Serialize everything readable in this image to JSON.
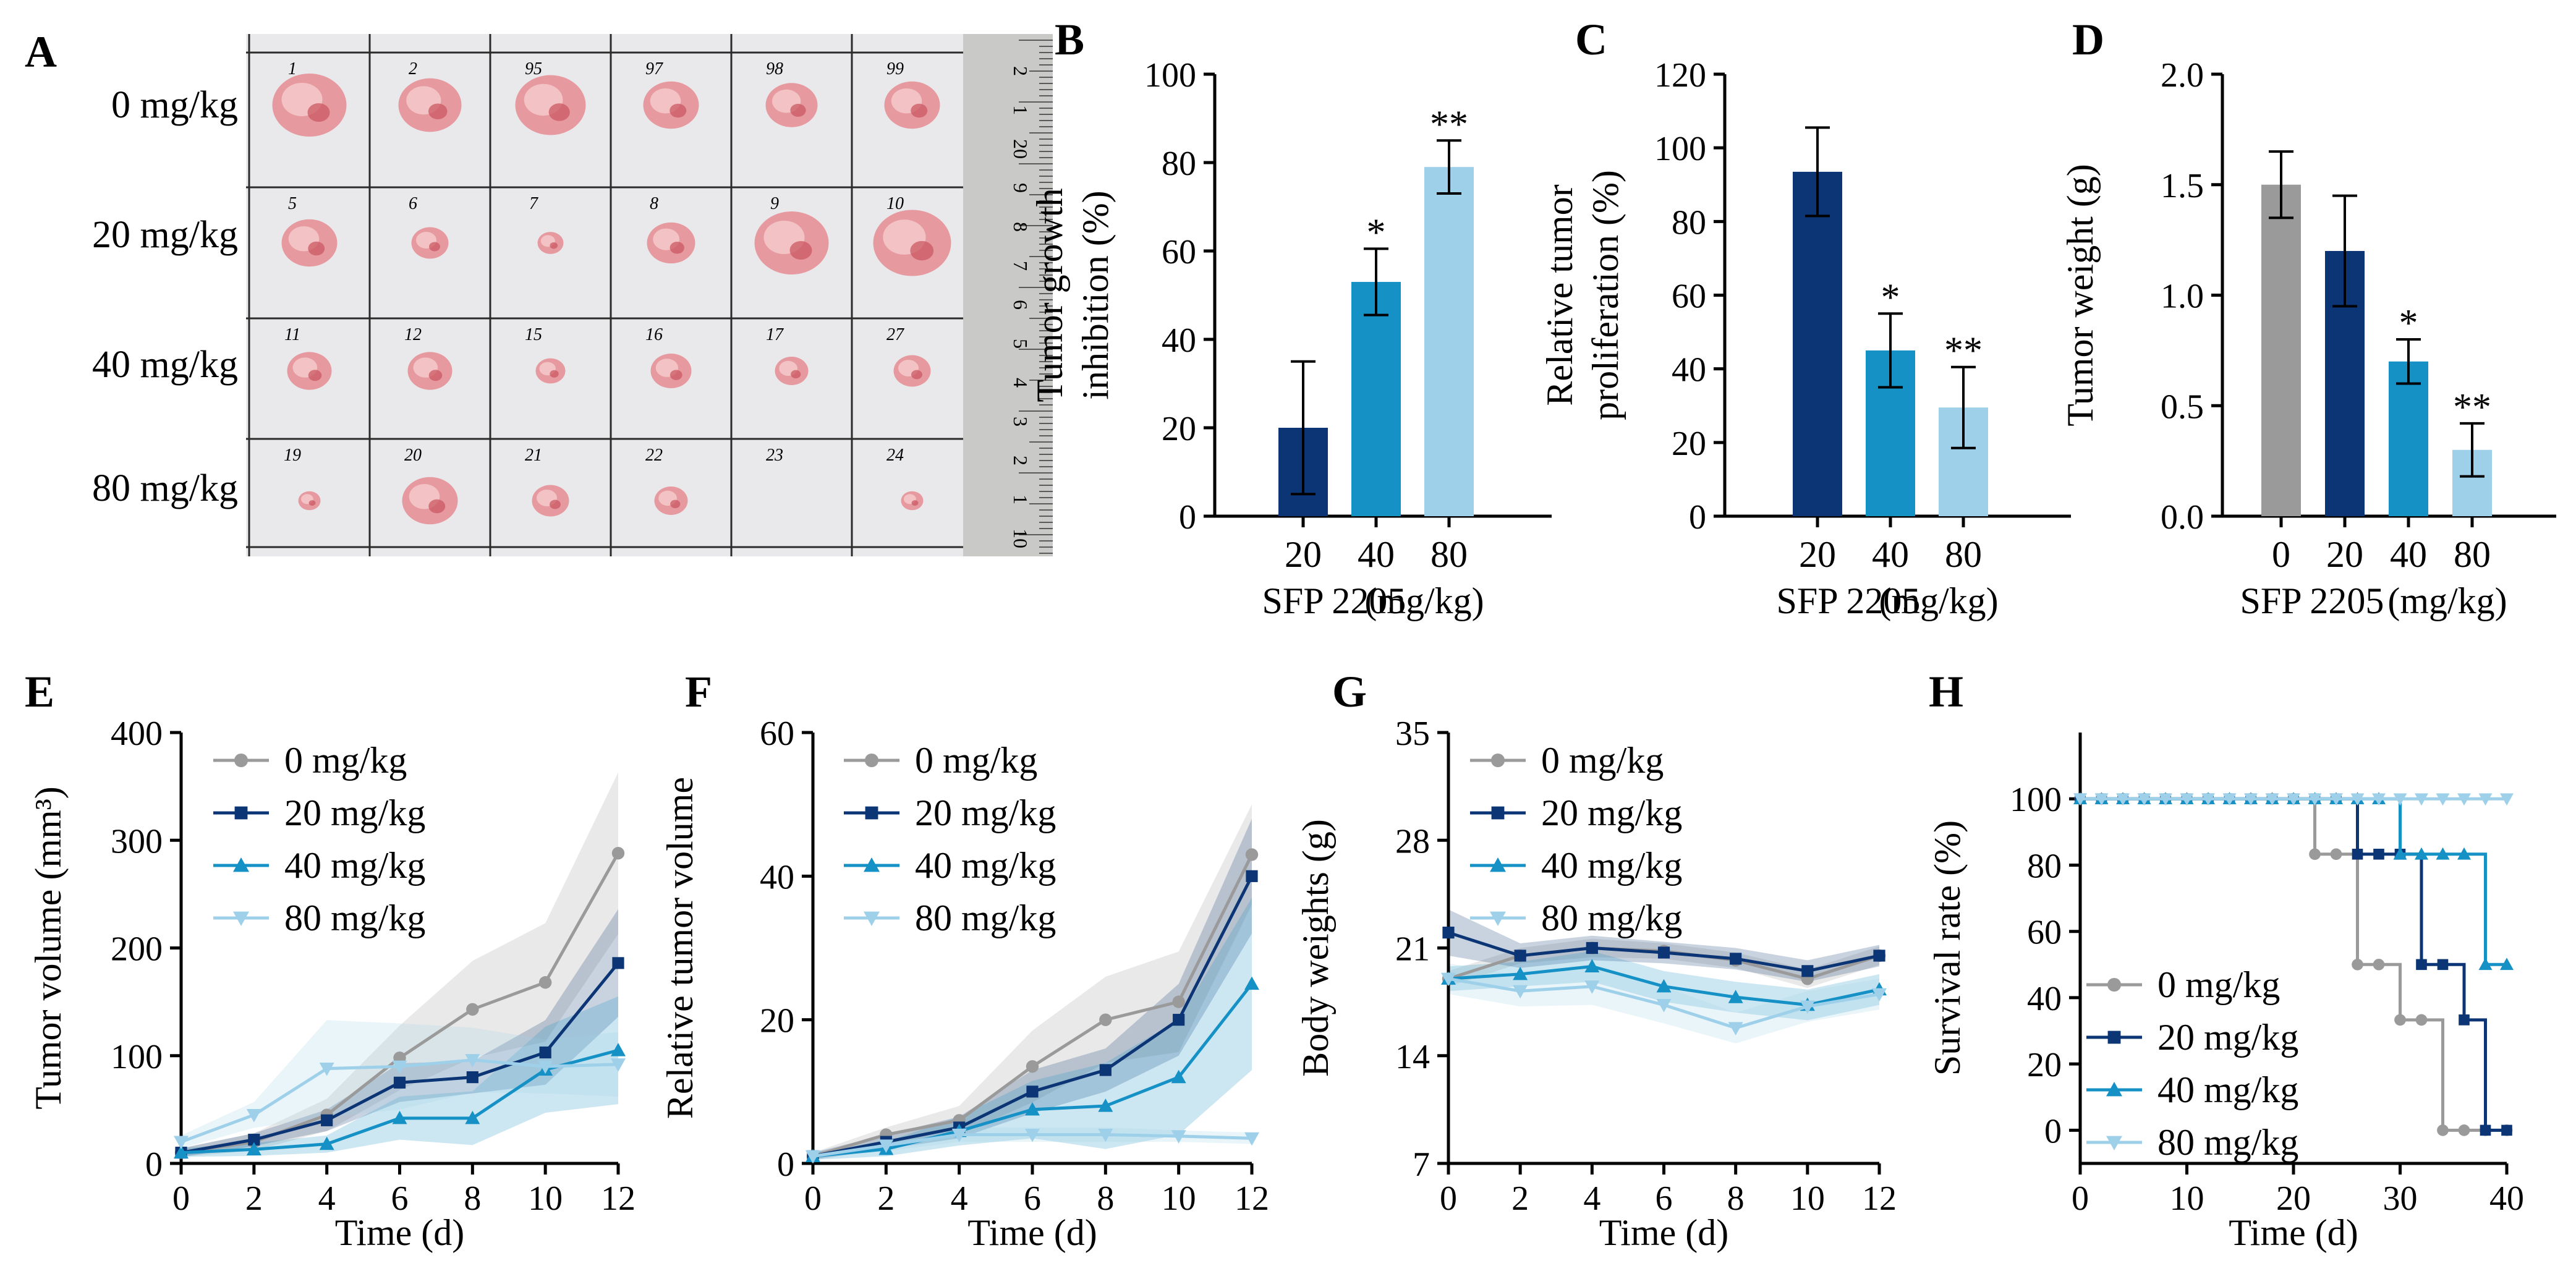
{
  "colors": {
    "gray": "#9a9a9a",
    "navy": "#0b3574",
    "mid": "#1591c6",
    "light": "#9fd0ea",
    "axis": "#000000"
  },
  "panels": {
    "A": {
      "label": "A",
      "doses": [
        "0 mg/kg",
        "20 mg/kg",
        "40 mg/kg",
        "80 mg/kg"
      ],
      "tumor_ids": [
        [
          "1",
          "2",
          "95",
          "97",
          "98",
          "99"
        ],
        [
          "5",
          "6",
          "7",
          "8",
          "9",
          "10"
        ],
        [
          "11",
          "12",
          "15",
          "16",
          "17",
          "27"
        ],
        [
          "19",
          "20",
          "21",
          "22",
          "23",
          "24"
        ]
      ],
      "tumor_sizes": [
        [
          1.0,
          0.85,
          0.95,
          0.75,
          0.7,
          0.75
        ],
        [
          0.75,
          0.5,
          0.35,
          0.65,
          1.0,
          1.05
        ],
        [
          0.6,
          0.6,
          0.4,
          0.55,
          0.45,
          0.5
        ],
        [
          0.3,
          0.75,
          0.5,
          0.45,
          0.0,
          0.3
        ]
      ],
      "ruler_labels": [
        "2",
        "1",
        "20",
        "9",
        "8",
        "7",
        "6",
        "5",
        "4",
        "3",
        "2",
        "1",
        "10"
      ]
    },
    "B": {
      "label": "B"
    },
    "C": {
      "label": "C"
    },
    "D": {
      "label": "D"
    },
    "E": {
      "label": "E"
    },
    "F": {
      "label": "F"
    },
    "G": {
      "label": "G"
    },
    "H": {
      "label": "H"
    }
  },
  "chart_data": [
    {
      "id": "B",
      "type": "bar",
      "ylabel": [
        "Tumor growth",
        "inhibition (%)"
      ],
      "ylim": [
        0,
        100
      ],
      "yticks": [
        0,
        20,
        40,
        60,
        80,
        100
      ],
      "ytick_labels": [
        "0",
        "20",
        "40",
        "60",
        "80",
        "100"
      ],
      "categories": [
        "20",
        "40",
        "80"
      ],
      "values": [
        20,
        53,
        79
      ],
      "errors": [
        15,
        7.5,
        6
      ],
      "colors": [
        "#0b3574",
        "#1591c6",
        "#9fd0ea"
      ],
      "sig": [
        "",
        "*",
        "**"
      ],
      "xlabel": "SFP 2205",
      "xunit": "(mg/kg)"
    },
    {
      "id": "C",
      "type": "bar",
      "ylabel": [
        "Relative tumor",
        "proliferation (%)"
      ],
      "ylim": [
        0,
        120
      ],
      "yticks": [
        0,
        20,
        40,
        60,
        80,
        100,
        120
      ],
      "ytick_labels": [
        "0",
        "20",
        "40",
        "60",
        "80",
        "100",
        "120"
      ],
      "categories": [
        "20",
        "40",
        "80"
      ],
      "values": [
        93.5,
        45,
        29.5
      ],
      "errors": [
        12,
        10,
        11
      ],
      "colors": [
        "#0b3574",
        "#1591c6",
        "#9fd0ea"
      ],
      "sig": [
        "",
        "*",
        "**"
      ],
      "xlabel": "SFP 2205",
      "xunit": "(mg/kg)"
    },
    {
      "id": "D",
      "type": "bar",
      "ylabel": [
        "Tumor weight (g)"
      ],
      "ylim": [
        0,
        2.0
      ],
      "yticks": [
        0,
        0.5,
        1.0,
        1.5,
        2.0
      ],
      "ytick_labels": [
        "0.0",
        "0.5",
        "1.0",
        "1.5",
        "2.0"
      ],
      "categories": [
        "0",
        "20",
        "40",
        "80"
      ],
      "values": [
        1.5,
        1.2,
        0.7,
        0.3
      ],
      "errors": [
        0.15,
        0.25,
        0.1,
        0.12
      ],
      "colors": [
        "#9a9a9a",
        "#0b3574",
        "#1591c6",
        "#9fd0ea"
      ],
      "sig": [
        "",
        "",
        "*",
        "**"
      ],
      "xlabel": "SFP 2205",
      "xunit": "(mg/kg)"
    },
    {
      "id": "E",
      "type": "line",
      "ylabel": [
        "Tumor volume (mm³)"
      ],
      "xlabel": "Time (d)",
      "xlim": [
        0,
        12
      ],
      "xticks": [
        0,
        2,
        4,
        6,
        8,
        10,
        12
      ],
      "ylim": [
        0,
        400
      ],
      "yticks": [
        0,
        100,
        200,
        300,
        400
      ],
      "x": [
        0,
        2,
        4,
        6,
        8,
        10,
        12
      ],
      "series": [
        {
          "name": "0 mg/kg",
          "color": "#9a9a9a",
          "marker": "circle",
          "values": [
            10,
            20,
            45,
            98,
            143,
            168,
            288
          ],
          "err": [
            4,
            8,
            15,
            30,
            45,
            55,
            75
          ]
        },
        {
          "name": "20 mg/kg",
          "color": "#0b3574",
          "marker": "square",
          "values": [
            10,
            22,
            40,
            75,
            80,
            103,
            186
          ],
          "err": [
            4,
            6,
            10,
            18,
            15,
            30,
            50
          ]
        },
        {
          "name": "40 mg/kg",
          "color": "#1591c6",
          "marker": "triangle",
          "values": [
            10,
            13,
            18,
            42,
            42,
            87,
            105
          ],
          "err": [
            4,
            6,
            8,
            20,
            25,
            40,
            50
          ]
        },
        {
          "name": "80 mg/kg",
          "color": "#9fd0ea",
          "marker": "tri-down",
          "values": [
            20,
            45,
            88,
            90,
            96,
            90,
            92
          ],
          "err": [
            6,
            12,
            45,
            40,
            30,
            25,
            30
          ]
        }
      ]
    },
    {
      "id": "F",
      "type": "line",
      "ylabel": [
        "Relative tumor volume"
      ],
      "xlabel": "Time (d)",
      "xlim": [
        0,
        12
      ],
      "xticks": [
        0,
        2,
        4,
        6,
        8,
        10,
        12
      ],
      "ylim": [
        0,
        60
      ],
      "yticks": [
        0,
        20,
        40,
        60
      ],
      "x": [
        0,
        2,
        4,
        6,
        8,
        10,
        12
      ],
      "series": [
        {
          "name": "0 mg/kg",
          "color": "#9a9a9a",
          "marker": "circle",
          "values": [
            1,
            4,
            6,
            13.5,
            20,
            22.5,
            43
          ],
          "err": [
            0.5,
            1,
            2,
            5,
            6,
            7,
            7
          ]
        },
        {
          "name": "20 mg/kg",
          "color": "#0b3574",
          "marker": "square",
          "values": [
            1,
            3,
            5,
            10,
            13,
            20,
            40
          ],
          "err": [
            0.5,
            1,
            1.5,
            3,
            3,
            5,
            8
          ]
        },
        {
          "name": "40 mg/kg",
          "color": "#1591c6",
          "marker": "triangle",
          "values": [
            1,
            2,
            4.5,
            7.5,
            8,
            12,
            25
          ],
          "err": [
            0.5,
            1,
            2,
            4,
            6,
            8,
            12
          ]
        },
        {
          "name": "80 mg/kg",
          "color": "#9fd0ea",
          "marker": "tri-down",
          "values": [
            1,
            2.5,
            4,
            4,
            4,
            3.8,
            3.5
          ],
          "err": [
            0.3,
            0.8,
            1,
            1,
            1,
            0.8,
            0.8
          ]
        }
      ]
    },
    {
      "id": "G",
      "type": "line",
      "ylabel": [
        "Body weights (g)"
      ],
      "xlabel": "Time (d)",
      "xlim": [
        0,
        12
      ],
      "xticks": [
        0,
        2,
        4,
        6,
        8,
        10,
        12
      ],
      "ylim": [
        7,
        35
      ],
      "yticks": [
        7,
        14,
        21,
        28,
        35
      ],
      "x": [
        0,
        2,
        4,
        6,
        8,
        10,
        12
      ],
      "series": [
        {
          "name": "0 mg/kg",
          "color": "#9a9a9a",
          "marker": "circle",
          "values": [
            19,
            20.5,
            21,
            20.8,
            20.2,
            19,
            20.5
          ],
          "err": [
            0.5,
            0.5,
            0.6,
            0.5,
            0.5,
            0.6,
            0.6
          ]
        },
        {
          "name": "20 mg/kg",
          "color": "#0b3574",
          "marker": "square",
          "values": [
            22,
            20.5,
            21,
            20.7,
            20.3,
            19.5,
            20.5
          ],
          "err": [
            1.5,
            0.8,
            0.8,
            0.7,
            0.7,
            0.7,
            0.7
          ]
        },
        {
          "name": "40 mg/kg",
          "color": "#1591c6",
          "marker": "triangle",
          "values": [
            19,
            19.3,
            19.8,
            18.5,
            17.8,
            17.3,
            18.3
          ],
          "err": [
            0.8,
            0.8,
            1,
            1,
            1,
            1,
            1
          ]
        },
        {
          "name": "80 mg/kg",
          "color": "#9fd0ea",
          "marker": "tri-down",
          "values": [
            19,
            18.2,
            18.5,
            17.3,
            15.8,
            17.2,
            18
          ],
          "err": [
            1,
            1,
            1.2,
            1.2,
            1,
            1,
            1
          ]
        }
      ]
    },
    {
      "id": "H",
      "type": "step",
      "ylabel": [
        "Survival rate (%)"
      ],
      "xlabel": "Time (d)",
      "xlim": [
        0,
        40
      ],
      "xticks": [
        0,
        10,
        20,
        30,
        40
      ],
      "ylim": [
        -10,
        120
      ],
      "yticks": [
        0,
        20,
        40,
        60,
        80,
        100
      ],
      "series": [
        {
          "name": "0 mg/kg",
          "color": "#9a9a9a",
          "marker": "circle",
          "steps": [
            [
              0,
              100
            ],
            [
              22,
              83.3
            ],
            [
              26,
              50
            ],
            [
              30,
              33.3
            ],
            [
              34,
              0
            ],
            [
              40,
              0
            ]
          ]
        },
        {
          "name": "20 mg/kg",
          "color": "#0b3574",
          "marker": "square",
          "steps": [
            [
              0,
              100
            ],
            [
              26,
              83.3
            ],
            [
              32,
              50
            ],
            [
              36,
              33.3
            ],
            [
              38,
              0
            ],
            [
              40,
              0
            ]
          ]
        },
        {
          "name": "40 mg/kg",
          "color": "#1591c6",
          "marker": "triangle",
          "steps": [
            [
              0,
              100
            ],
            [
              30,
              83.3
            ],
            [
              38,
              50
            ],
            [
              40,
              50
            ]
          ]
        },
        {
          "name": "80 mg/kg",
          "color": "#9fd0ea",
          "marker": "tri-down",
          "steps": [
            [
              0,
              100
            ],
            [
              40,
              100
            ]
          ]
        }
      ]
    }
  ]
}
